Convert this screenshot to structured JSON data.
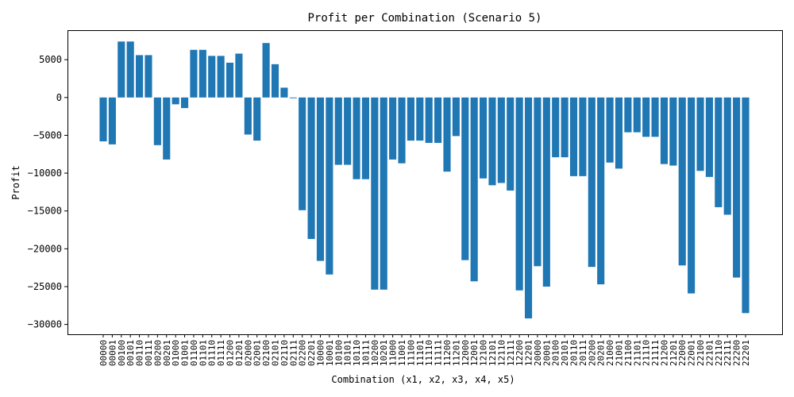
{
  "chart_data": {
    "type": "bar",
    "title": "Profit per Combination (Scenario 5)",
    "xlabel": "Combination (x1, x2, x3, x4, x5)",
    "ylabel": "Profit",
    "ylim": [
      -31300,
      8900
    ],
    "yticks": [
      5000,
      0,
      -5000,
      -10000,
      -15000,
      -20000,
      -25000,
      -30000
    ],
    "ytick_labels": [
      "5000",
      "0",
      "−5000",
      "−10000",
      "−15000",
      "−20000",
      "−25000",
      "−30000"
    ],
    "grid": false,
    "bar_color": "#1f77b4",
    "categories": [
      "00000",
      "00001",
      "00100",
      "00101",
      "00110",
      "00111",
      "00200",
      "00201",
      "01000",
      "01001",
      "01100",
      "01101",
      "01110",
      "01111",
      "01200",
      "01201",
      "02000",
      "02001",
      "02100",
      "02101",
      "02110",
      "02111",
      "02200",
      "02201",
      "10000",
      "10001",
      "10100",
      "10101",
      "10110",
      "10111",
      "10200",
      "10201",
      "11000",
      "11001",
      "11100",
      "11101",
      "11110",
      "11111",
      "11200",
      "11201",
      "12000",
      "12001",
      "12100",
      "12101",
      "12110",
      "12111",
      "12200",
      "12201",
      "20000",
      "20001",
      "20100",
      "20101",
      "20110",
      "20111",
      "20200",
      "20201",
      "21000",
      "21001",
      "21100",
      "21101",
      "21110",
      "21111",
      "21200",
      "21201",
      "22000",
      "22001",
      "22100",
      "22101",
      "22110",
      "22111",
      "22200",
      "22201"
    ],
    "values": [
      -5800,
      -6200,
      7400,
      7400,
      5600,
      5600,
      -6300,
      -8200,
      -900,
      -1400,
      6300,
      6300,
      5500,
      5500,
      4600,
      5800,
      -4900,
      -5700,
      7200,
      4400,
      1300,
      -100,
      -14900,
      -18700,
      -21600,
      -23400,
      -8900,
      -8900,
      -10800,
      -10800,
      -25400,
      -25400,
      -8200,
      -8700,
      -5700,
      -5700,
      -6000,
      -6000,
      -9800,
      -5100,
      -21500,
      -24300,
      -10700,
      -11600,
      -11300,
      -12300,
      -25500,
      -29200,
      -22300,
      -25000,
      -7900,
      -7900,
      -10400,
      -10400,
      -22400,
      -24700,
      -8600,
      -9400,
      -4600,
      -4600,
      -5200,
      -5200,
      -8800,
      -9000,
      -22200,
      -25900,
      -9700,
      -10500,
      -14500,
      -15500,
      -23800,
      -28500
    ]
  }
}
